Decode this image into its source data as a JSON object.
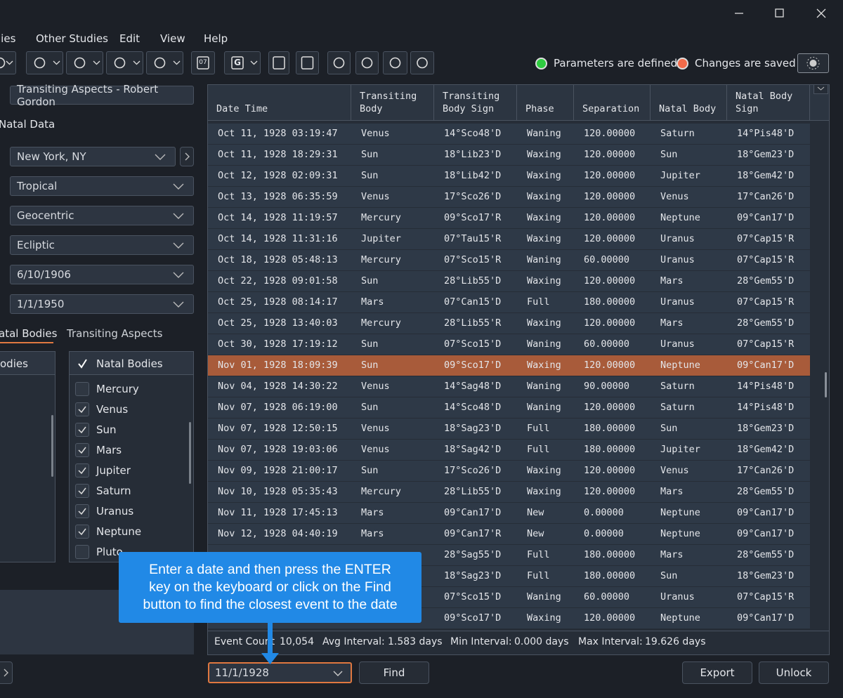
{
  "menu": [
    "lies",
    "Other Studies",
    "Edit",
    "View",
    "Help"
  ],
  "toolbar": {
    "calendar_icon": "07",
    "g_icon": "G",
    "status": [
      {
        "text": "Parameters are defined",
        "color": "#2ecc40"
      },
      {
        "text": "Changes are saved",
        "color": "#f26b4a"
      }
    ]
  },
  "left_panel": {
    "study_name": "Transiting Aspects - Robert Gordon",
    "section_label": "Natal Data",
    "dropdowns": [
      "New York, NY",
      "Tropical",
      "Geocentric",
      "Ecliptic",
      "6/10/1906",
      "1/1/1950"
    ],
    "tabs": [
      "atal Bodies",
      "Transiting Aspects"
    ],
    "left_list_header": "odies",
    "right_list_header": "Natal Bodies",
    "bodies": [
      {
        "name": "Mercury",
        "checked": false
      },
      {
        "name": "Venus",
        "checked": true
      },
      {
        "name": "Sun",
        "checked": true
      },
      {
        "name": "Mars",
        "checked": true
      },
      {
        "name": "Jupiter",
        "checked": true
      },
      {
        "name": "Saturn",
        "checked": true
      },
      {
        "name": "Uranus",
        "checked": true
      },
      {
        "name": "Neptune",
        "checked": true
      },
      {
        "name": "Pluto",
        "checked": false
      }
    ]
  },
  "table": {
    "headers": [
      "Date Time",
      "Transiting Body",
      "Transiting Body Sign",
      "Phase",
      "Separation",
      "Natal Body",
      "Natal Body Sign"
    ],
    "selected_row": 11,
    "rows": [
      [
        "Oct 11, 1928 03:19:47",
        "Venus",
        "14°Sco48'D",
        "Waning",
        "120.00000",
        "Saturn",
        "14°Pis48'D"
      ],
      [
        "Oct 11, 1928 18:29:31",
        "Sun",
        "18°Lib23'D",
        "Waxing",
        "120.00000",
        "Sun",
        "18°Gem23'D"
      ],
      [
        "Oct 12, 1928 02:09:31",
        "Sun",
        "18°Lib42'D",
        "Waxing",
        "120.00000",
        "Jupiter",
        "18°Gem42'D"
      ],
      [
        "Oct 13, 1928 06:35:59",
        "Venus",
        "17°Sco26'D",
        "Waxing",
        "120.00000",
        "Venus",
        "17°Can26'D"
      ],
      [
        "Oct 14, 1928 11:19:57",
        "Mercury",
        "09°Sco17'R",
        "Waxing",
        "120.00000",
        "Neptune",
        "09°Can17'D"
      ],
      [
        "Oct 14, 1928 11:31:16",
        "Jupiter",
        "07°Tau15'R",
        "Waxing",
        "120.00000",
        "Uranus",
        "07°Cap15'R"
      ],
      [
        "Oct 18, 1928 05:48:13",
        "Mercury",
        "07°Sco15'R",
        "Waning",
        "60.00000",
        "Uranus",
        "07°Cap15'R"
      ],
      [
        "Oct 22, 1928 09:01:58",
        "Sun",
        "28°Lib55'D",
        "Waxing",
        "120.00000",
        "Mars",
        "28°Gem55'D"
      ],
      [
        "Oct 25, 1928 08:14:17",
        "Mars",
        "07°Can15'D",
        "Full",
        "180.00000",
        "Uranus",
        "07°Cap15'R"
      ],
      [
        "Oct 25, 1928 13:40:03",
        "Mercury",
        "28°Lib55'R",
        "Waxing",
        "120.00000",
        "Mars",
        "28°Gem55'D"
      ],
      [
        "Oct 30, 1928 17:19:12",
        "Sun",
        "07°Sco15'D",
        "Waning",
        "60.00000",
        "Uranus",
        "07°Cap15'R"
      ],
      [
        "Nov 01, 1928 18:09:39",
        "Sun",
        "09°Sco17'D",
        "Waxing",
        "120.00000",
        "Neptune",
        "09°Can17'D"
      ],
      [
        "Nov 04, 1928 14:30:22",
        "Venus",
        "14°Sag48'D",
        "Waning",
        "90.00000",
        "Saturn",
        "14°Pis48'D"
      ],
      [
        "Nov 07, 1928 06:19:00",
        "Sun",
        "14°Sco48'D",
        "Waning",
        "120.00000",
        "Saturn",
        "14°Pis48'D"
      ],
      [
        "Nov 07, 1928 12:50:15",
        "Venus",
        "18°Sag23'D",
        "Full",
        "180.00000",
        "Sun",
        "18°Gem23'D"
      ],
      [
        "Nov 07, 1928 19:03:06",
        "Venus",
        "18°Sag42'D",
        "Full",
        "180.00000",
        "Jupiter",
        "18°Gem42'D"
      ],
      [
        "Nov 09, 1928 21:00:17",
        "Sun",
        "17°Sco26'D",
        "Waxing",
        "120.00000",
        "Venus",
        "17°Can26'D"
      ],
      [
        "Nov 10, 1928 05:35:43",
        "Mercury",
        "28°Lib55'D",
        "Waxing",
        "120.00000",
        "Mars",
        "28°Gem55'D"
      ],
      [
        "Nov 11, 1928 17:45:13",
        "Mars",
        "09°Can17'D",
        "New",
        "0.00000",
        "Neptune",
        "09°Can17'D"
      ],
      [
        "Nov 12, 1928 04:40:19",
        "Mars",
        "09°Can17'R",
        "New",
        "0.00000",
        "Neptune",
        "09°Can17'D"
      ],
      [
        null,
        null,
        "28°Sag55'D",
        "Full",
        "180.00000",
        "Mars",
        "28°Gem55'D"
      ],
      [
        null,
        null,
        "18°Sag23'D",
        "Full",
        "180.00000",
        "Sun",
        "18°Gem23'D"
      ],
      [
        null,
        null,
        "07°Sco15'D",
        "Waning",
        "60.00000",
        "Uranus",
        "07°Cap15'R"
      ],
      [
        null,
        null,
        "09°Sco17'D",
        "Waxing",
        "120.00000",
        "Neptune",
        "09°Can17'D"
      ]
    ]
  },
  "summary": [
    {
      "label": "Event Count",
      "value": "10,054"
    },
    {
      "label": "Avg Interval:",
      "value": "1.583 days"
    },
    {
      "label": "Min Interval:",
      "value": "0.000 days"
    },
    {
      "label": "Max Interval:",
      "value": "19.626 days"
    }
  ],
  "footer": {
    "date_input": "11/1/1928",
    "buttons": [
      "Find",
      "Export",
      "Unlock"
    ]
  },
  "tooltip": [
    "Enter a date and then press the ENTER",
    "key on the keyboard or click on the Find",
    "button to find the closest event to the date"
  ]
}
